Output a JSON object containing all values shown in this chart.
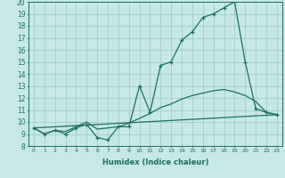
{
  "xlabel": "Humidex (Indice chaleur)",
  "xlim": [
    -0.5,
    23.5
  ],
  "ylim": [
    8,
    20
  ],
  "xticks": [
    0,
    1,
    2,
    3,
    4,
    5,
    6,
    7,
    8,
    9,
    10,
    11,
    12,
    13,
    14,
    15,
    16,
    17,
    18,
    19,
    20,
    21,
    22,
    23
  ],
  "yticks": [
    8,
    9,
    10,
    11,
    12,
    13,
    14,
    15,
    16,
    17,
    18,
    19,
    20
  ],
  "bg_color": "#c8e8e5",
  "line_color": "#1a6e65",
  "grid_color": "#a0ceca",
  "line1_x": [
    0,
    1,
    2,
    3,
    4,
    5,
    6,
    7,
    8,
    9,
    10,
    11,
    12,
    13,
    14,
    15,
    16,
    17,
    18,
    19,
    20,
    21,
    22,
    23
  ],
  "line1_y": [
    9.5,
    9.0,
    9.3,
    9.0,
    9.5,
    9.8,
    8.7,
    8.5,
    9.6,
    9.6,
    13.0,
    10.8,
    14.7,
    15.0,
    16.8,
    17.5,
    18.7,
    19.0,
    19.5,
    20.0,
    15.0,
    11.1,
    10.8,
    10.6
  ],
  "line2_x": [
    0,
    1,
    2,
    3,
    4,
    5,
    6,
    7,
    8,
    9,
    10,
    11,
    12,
    13,
    14,
    15,
    16,
    17,
    18,
    19,
    20,
    21,
    22,
    23
  ],
  "line2_y": [
    9.5,
    9.0,
    9.3,
    9.2,
    9.6,
    10.0,
    9.4,
    9.5,
    9.6,
    9.9,
    10.3,
    10.7,
    11.2,
    11.5,
    11.9,
    12.2,
    12.4,
    12.6,
    12.7,
    12.5,
    12.2,
    11.7,
    10.8,
    10.6
  ],
  "line3_x": [
    0,
    23
  ],
  "line3_y": [
    9.5,
    10.6
  ]
}
